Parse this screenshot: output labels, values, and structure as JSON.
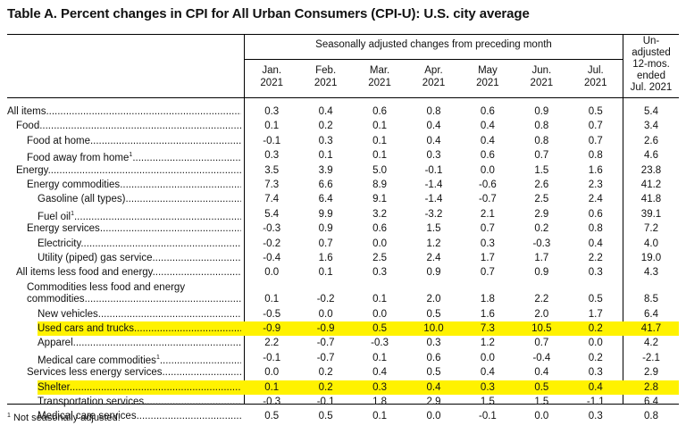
{
  "title": "Table A. Percent changes in CPI for All Urban Consumers (CPI-U): U.S. city average",
  "header": {
    "span": "Seasonally adjusted changes from preceding month",
    "months": [
      {
        "m": "Jan.",
        "y": "2021"
      },
      {
        "m": "Feb.",
        "y": "2021"
      },
      {
        "m": "Mar.",
        "y": "2021"
      },
      {
        "m": "Apr.",
        "y": "2021"
      },
      {
        "m": "May",
        "y": "2021"
      },
      {
        "m": "Jun.",
        "y": "2021"
      },
      {
        "m": "Jul.",
        "y": "2021"
      }
    ],
    "unadjusted": [
      "Un-",
      "adjusted",
      "12-mos.",
      "ended",
      "Jul. 2021"
    ]
  },
  "rows": [
    {
      "label": "All items",
      "note": "",
      "indent": 0,
      "values": [
        "0.3",
        "0.4",
        "0.6",
        "0.8",
        "0.6",
        "0.9",
        "0.5",
        "5.4"
      ],
      "highlight": false
    },
    {
      "label": "Food",
      "note": "",
      "indent": 1,
      "values": [
        "0.1",
        "0.2",
        "0.1",
        "0.4",
        "0.4",
        "0.8",
        "0.7",
        "3.4"
      ],
      "highlight": false
    },
    {
      "label": "Food at home",
      "note": "",
      "indent": 2,
      "values": [
        "-0.1",
        "0.3",
        "0.1",
        "0.4",
        "0.4",
        "0.8",
        "0.7",
        "2.6"
      ],
      "highlight": false
    },
    {
      "label": "Food away from home",
      "note": "1",
      "indent": 2,
      "values": [
        "0.3",
        "0.1",
        "0.1",
        "0.3",
        "0.6",
        "0.7",
        "0.8",
        "4.6"
      ],
      "highlight": false
    },
    {
      "label": "Energy",
      "note": "",
      "indent": 1,
      "values": [
        "3.5",
        "3.9",
        "5.0",
        "-0.1",
        "0.0",
        "1.5",
        "1.6",
        "23.8"
      ],
      "highlight": false
    },
    {
      "label": "Energy commodities",
      "note": "",
      "indent": 2,
      "values": [
        "7.3",
        "6.6",
        "8.9",
        "-1.4",
        "-0.6",
        "2.6",
        "2.3",
        "41.2"
      ],
      "highlight": false
    },
    {
      "label": "Gasoline (all types)",
      "note": "",
      "indent": 3,
      "values": [
        "7.4",
        "6.4",
        "9.1",
        "-1.4",
        "-0.7",
        "2.5",
        "2.4",
        "41.8"
      ],
      "highlight": false
    },
    {
      "label": "Fuel oil",
      "note": "1",
      "indent": 3,
      "values": [
        "5.4",
        "9.9",
        "3.2",
        "-3.2",
        "2.1",
        "2.9",
        "0.6",
        "39.1"
      ],
      "highlight": false
    },
    {
      "label": "Energy services",
      "note": "",
      "indent": 2,
      "values": [
        "-0.3",
        "0.9",
        "0.6",
        "1.5",
        "0.7",
        "0.2",
        "0.8",
        "7.2"
      ],
      "highlight": false
    },
    {
      "label": "Electricity",
      "note": "",
      "indent": 3,
      "values": [
        "-0.2",
        "0.7",
        "0.0",
        "1.2",
        "0.3",
        "-0.3",
        "0.4",
        "4.0"
      ],
      "highlight": false
    },
    {
      "label": "Utility (piped) gas service",
      "note": "",
      "indent": 3,
      "values": [
        "-0.4",
        "1.6",
        "2.5",
        "2.4",
        "1.7",
        "1.7",
        "2.2",
        "19.0"
      ],
      "highlight": false
    },
    {
      "label": "All items less food and energy",
      "note": "",
      "indent": 1,
      "values": [
        "0.0",
        "0.1",
        "0.3",
        "0.9",
        "0.7",
        "0.9",
        "0.3",
        "4.3"
      ],
      "highlight": false
    },
    {
      "label": "Commodities less food and energy",
      "label2": "commodities",
      "note": "",
      "indent": 2,
      "values": [
        "0.1",
        "-0.2",
        "0.1",
        "2.0",
        "1.8",
        "2.2",
        "0.5",
        "8.5"
      ],
      "highlight": false
    },
    {
      "label": "New vehicles",
      "note": "",
      "indent": 3,
      "values": [
        "-0.5",
        "0.0",
        "0.0",
        "0.5",
        "1.6",
        "2.0",
        "1.7",
        "6.4"
      ],
      "highlight": false
    },
    {
      "label": "Used cars and trucks",
      "note": "",
      "indent": 3,
      "values": [
        "-0.9",
        "-0.9",
        "0.5",
        "10.0",
        "7.3",
        "10.5",
        "0.2",
        "41.7"
      ],
      "highlight": true
    },
    {
      "label": "Apparel",
      "note": "",
      "indent": 3,
      "values": [
        "2.2",
        "-0.7",
        "-0.3",
        "0.3",
        "1.2",
        "0.7",
        "0.0",
        "4.2"
      ],
      "highlight": false
    },
    {
      "label": "Medical care commodities",
      "note": "1",
      "indent": 3,
      "values": [
        "-0.1",
        "-0.7",
        "0.1",
        "0.6",
        "0.0",
        "-0.4",
        "0.2",
        "-2.1"
      ],
      "highlight": false
    },
    {
      "label": "Services less energy services",
      "note": "",
      "indent": 2,
      "values": [
        "0.0",
        "0.2",
        "0.4",
        "0.5",
        "0.4",
        "0.4",
        "0.3",
        "2.9"
      ],
      "highlight": false
    },
    {
      "label": "Shelter",
      "note": "",
      "indent": 3,
      "values": [
        "0.1",
        "0.2",
        "0.3",
        "0.4",
        "0.3",
        "0.5",
        "0.4",
        "2.8"
      ],
      "highlight": true
    },
    {
      "label": "Transportation services",
      "note": "",
      "indent": 3,
      "values": [
        "-0.3",
        "-0.1",
        "1.8",
        "2.9",
        "1.5",
        "1.5",
        "-1.1",
        "6.4"
      ],
      "highlight": false
    },
    {
      "label": "Medical care services",
      "note": "",
      "indent": 3,
      "values": [
        "0.5",
        "0.5",
        "0.1",
        "0.0",
        "-0.1",
        "0.0",
        "0.3",
        "0.8"
      ],
      "highlight": false
    }
  ],
  "footnote": {
    "mark": "1",
    "text": "Not seasonally adjusted."
  },
  "colors": {
    "highlight": "#fff200",
    "rule": "#000000"
  }
}
